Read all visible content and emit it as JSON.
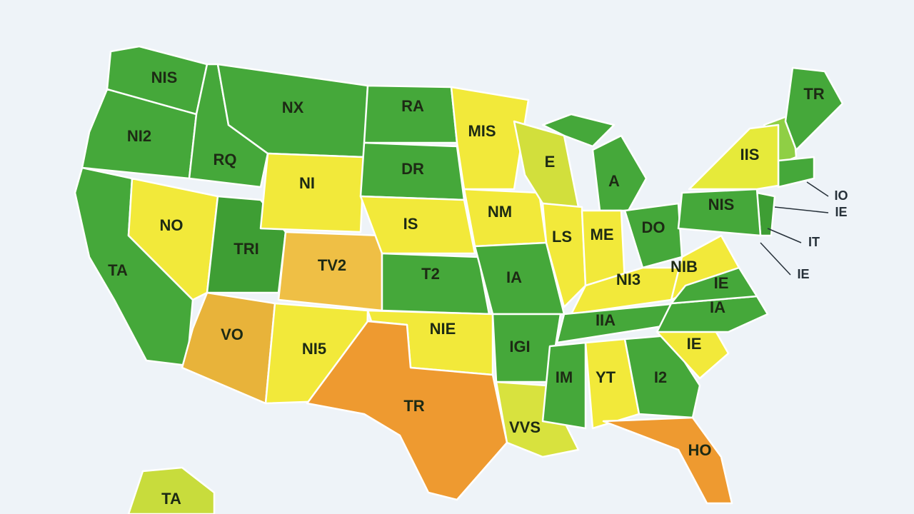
{
  "regions": [
    {
      "label": "NIS",
      "color": "#45a83a"
    },
    {
      "label": "NI2",
      "color": "#45a83a"
    },
    {
      "label": "TA",
      "color": "#45a83a"
    },
    {
      "label": "RQ",
      "color": "#45a83a"
    },
    {
      "label": "NX",
      "color": "#45a83a"
    },
    {
      "label": "NO",
      "color": "#f2e93a"
    },
    {
      "label": "TRI",
      "color": "#3e9e34"
    },
    {
      "label": "NI",
      "color": "#f2e93a"
    },
    {
      "label": "TV2",
      "color": "#efbf45"
    },
    {
      "label": "VO",
      "color": "#e8b33a"
    },
    {
      "label": "NI5",
      "color": "#f2e93a"
    },
    {
      "label": "RA",
      "color": "#45a83a"
    },
    {
      "label": "DR",
      "color": "#45a83a"
    },
    {
      "label": "IS",
      "color": "#f2e93a"
    },
    {
      "label": "T2",
      "color": "#45a83a"
    },
    {
      "label": "NIE",
      "color": "#f2e93a"
    },
    {
      "label": "TR",
      "color": "#ee9a30"
    },
    {
      "label": "MIS",
      "color": "#f2e93a"
    },
    {
      "label": "NM",
      "color": "#f2e93a"
    },
    {
      "label": "IA",
      "color": "#45a83a"
    },
    {
      "label": "IGI",
      "color": "#45a83a"
    },
    {
      "label": "VVS",
      "color": "#d8e23e"
    },
    {
      "label": "E",
      "color": "#d2df3c"
    },
    {
      "label": "LS",
      "color": "#f2e93a"
    },
    {
      "label": "A",
      "color": "#45a83a"
    },
    {
      "label": "ME",
      "color": "#f2e93a"
    },
    {
      "label": "DO",
      "color": "#45a83a"
    },
    {
      "label": "NI3",
      "color": "#f2e93a"
    },
    {
      "label": "IIA",
      "color": "#45a83a"
    },
    {
      "label": "IM",
      "color": "#45a83a"
    },
    {
      "label": "YT",
      "color": "#f2e93a"
    },
    {
      "label": "I2",
      "color": "#45a83a"
    },
    {
      "label": "HO",
      "color": "#ee9a30"
    },
    {
      "label": "IE",
      "color": "#f2e93a"
    },
    {
      "label": "IA",
      "color": "#45a83a"
    },
    {
      "label": "NIB",
      "color": "#f2e93a"
    },
    {
      "label": "IE",
      "color": "#45a83a"
    },
    {
      "label": "NIS",
      "color": "#45a83a"
    },
    {
      "label": "IIS",
      "color": "#e6ea3a"
    },
    {
      "label": "TR",
      "color": "#45a83a"
    },
    {
      "label": "TA",
      "color": "#c8dc3c"
    }
  ],
  "unlabeled_regions": [
    {
      "color": "#8fcf45"
    },
    {
      "color": "#45a83a"
    },
    {
      "color": "#3e9e34"
    },
    {
      "color": "#45a83a"
    }
  ],
  "callouts": [
    {
      "label": "IO"
    },
    {
      "label": "IE"
    },
    {
      "label": "IT"
    },
    {
      "label": "IE"
    }
  ]
}
